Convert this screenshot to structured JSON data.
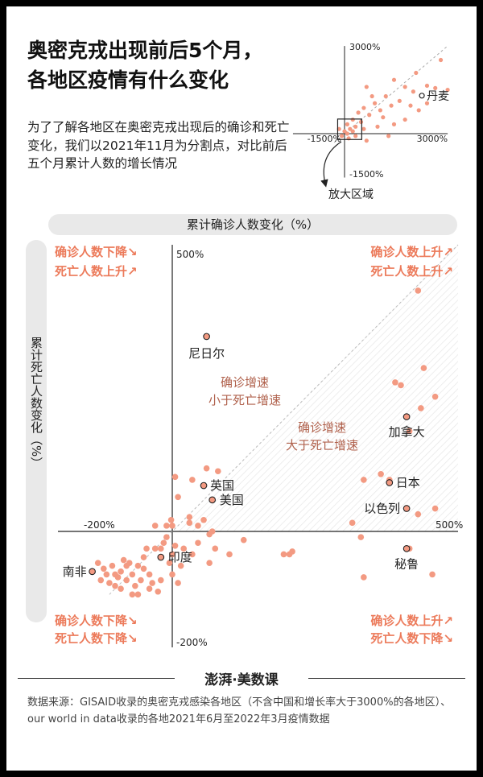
{
  "title_lines": [
    "奥密克戎出现前后5个月，",
    "各地区疫情有什么变化"
  ],
  "intro": "为了了解各地区在奥密克戎出现后的确诊和死亡变化，我们以2021年11月为分割点，对比前后五个月累计人数的增长情况",
  "colors": {
    "dot": "#f39a82",
    "accent": "#ec7a5a",
    "label_brown": "#b0614c",
    "axis_bar": "#e9e9e9"
  },
  "inset": {
    "y_top_label": "3000%",
    "x_left_label": "-1500%",
    "x_right_label": "3000%",
    "y_bottom_label": "-1500%",
    "callout": "丹麦",
    "zoom_label": "放大区域",
    "points": [
      {
        "x": 3000,
        "y": 1500
      },
      {
        "x": 2640,
        "y": 1560
      },
      {
        "x": 2800,
        "y": 2520
      },
      {
        "x": 2400,
        "y": 1640
      },
      {
        "x": 2000,
        "y": 1440
      },
      {
        "x": 1760,
        "y": 1600
      },
      {
        "x": 1600,
        "y": 1120
      },
      {
        "x": 1360,
        "y": 960
      },
      {
        "x": 1200,
        "y": 1280
      },
      {
        "x": 1040,
        "y": 800
      },
      {
        "x": 880,
        "y": 1040
      },
      {
        "x": 720,
        "y": 640
      },
      {
        "x": 560,
        "y": 880
      },
      {
        "x": 480,
        "y": 400
      },
      {
        "x": 400,
        "y": 720
      },
      {
        "x": 320,
        "y": 240
      },
      {
        "x": 240,
        "y": 480
      },
      {
        "x": 160,
        "y": 160
      },
      {
        "x": 80,
        "y": 320
      },
      {
        "x": 0,
        "y": 80
      },
      {
        "x": -80,
        "y": -80
      },
      {
        "x": 120,
        "y": -160
      },
      {
        "x": 640,
        "y": -240
      },
      {
        "x": 1280,
        "y": -80
      },
      {
        "x": 1760,
        "y": 480
      },
      {
        "x": 2160,
        "y": 800
      },
      {
        "x": 960,
        "y": 240
      },
      {
        "x": 1120,
        "y": 560
      },
      {
        "x": 1440,
        "y": 320
      },
      {
        "x": 560,
        "y": 160
      },
      {
        "x": 320,
        "y": -80
      },
      {
        "x": 240,
        "y": 80
      },
      {
        "x": 80,
        "y": 0
      },
      {
        "x": -160,
        "y": 160
      },
      {
        "x": 2400,
        "y": 1040
      },
      {
        "x": 1920,
        "y": 960
      },
      {
        "x": 800,
        "y": 1280
      },
      {
        "x": 640,
        "y": 1600
      },
      {
        "x": 1440,
        "y": 1840
      },
      {
        "x": 2080,
        "y": 2080
      }
    ]
  },
  "chart_data": {
    "type": "scatter",
    "xlabel": "累计确诊人数变化（%）",
    "ylabel": "累计死亡人数变化（%）",
    "xlim": [
      -200,
      500
    ],
    "ylim": [
      -200,
      500
    ],
    "x_ticks": [
      "-200%",
      "500%"
    ],
    "y_ticks": [
      "500%",
      "-200%"
    ],
    "reference_line": "y = x",
    "grid": false,
    "quadrant_labels": {
      "top_left": [
        "确诊人数下降",
        "死亡人数上升"
      ],
      "top_right": [
        "确诊人数上升",
        "死亡人数上升"
      ],
      "bottom_left": [
        "确诊人数下降",
        "死亡人数下降"
      ],
      "bottom_right": [
        "确诊人数上升",
        "死亡人数下降"
      ]
    },
    "region_labels": {
      "upper": [
        "确诊增速",
        "小于死亡增速"
      ],
      "lower": [
        "确诊增速",
        "大于死亡增速"
      ]
    },
    "labeled_points": [
      {
        "name": "尼日尔",
        "x": 60,
        "y": 340
      },
      {
        "name": "加拿大",
        "x": 410,
        "y": 200
      },
      {
        "name": "日本",
        "x": 380,
        "y": 85
      },
      {
        "name": "英国",
        "x": 55,
        "y": 80
      },
      {
        "name": "美国",
        "x": 70,
        "y": 55
      },
      {
        "name": "以色列",
        "x": 410,
        "y": 40
      },
      {
        "name": "秘鲁",
        "x": 410,
        "y": -30
      },
      {
        "name": "印度",
        "x": -20,
        "y": -45
      },
      {
        "name": "南非",
        "x": -140,
        "y": -70
      }
    ],
    "points": [
      {
        "x": 430,
        "y": 420
      },
      {
        "x": 440,
        "y": 285
      },
      {
        "x": 390,
        "y": 260
      },
      {
        "x": 400,
        "y": 255
      },
      {
        "x": 435,
        "y": 215
      },
      {
        "x": 415,
        "y": 175
      },
      {
        "x": 460,
        "y": 235
      },
      {
        "x": 380,
        "y": 90
      },
      {
        "x": 335,
        "y": 90
      },
      {
        "x": 365,
        "y": 100
      },
      {
        "x": 430,
        "y": 30
      },
      {
        "x": 460,
        "y": 40
      },
      {
        "x": 315,
        "y": 15
      },
      {
        "x": 330,
        "y": -10
      },
      {
        "x": 415,
        "y": -30
      },
      {
        "x": 455,
        "y": -75
      },
      {
        "x": 335,
        "y": -80
      },
      {
        "x": 210,
        "y": -35
      },
      {
        "x": 205,
        "y": -40
      },
      {
        "x": 195,
        "y": -40
      },
      {
        "x": 125,
        "y": -15
      },
      {
        "x": 65,
        "y": -5
      },
      {
        "x": 30,
        "y": 15
      },
      {
        "x": 60,
        "y": 110
      },
      {
        "x": 80,
        "y": 105
      },
      {
        "x": 35,
        "y": 90
      },
      {
        "x": 5,
        "y": 95
      },
      {
        "x": 10,
        "y": 60
      },
      {
        "x": 30,
        "y": 25
      },
      {
        "x": 0,
        "y": 10
      },
      {
        "x": -2,
        "y": 20
      },
      {
        "x": -10,
        "y": 10
      },
      {
        "x": -30,
        "y": 10
      },
      {
        "x": 45,
        "y": 10
      },
      {
        "x": 55,
        "y": 20
      },
      {
        "x": 70,
        "y": 0
      },
      {
        "x": 75,
        "y": -30
      },
      {
        "x": 65,
        "y": -55
      },
      {
        "x": 100,
        "y": -40
      },
      {
        "x": 15,
        "y": -60
      },
      {
        "x": 45,
        "y": -20
      },
      {
        "x": 35,
        "y": -40
      },
      {
        "x": 0,
        "y": -40
      },
      {
        "x": 5,
        "y": -25
      },
      {
        "x": 20,
        "y": -30
      },
      {
        "x": -20,
        "y": -30
      },
      {
        "x": -15,
        "y": -20
      },
      {
        "x": -10,
        "y": -10
      },
      {
        "x": -30,
        "y": -30
      },
      {
        "x": -45,
        "y": -30
      },
      {
        "x": -50,
        "y": -45
      },
      {
        "x": -60,
        "y": -60
      },
      {
        "x": -70,
        "y": -75
      },
      {
        "x": -75,
        "y": -55
      },
      {
        "x": -80,
        "y": -85
      },
      {
        "x": -90,
        "y": -70
      },
      {
        "x": -95,
        "y": -80
      },
      {
        "x": -100,
        "y": -75
      },
      {
        "x": -105,
        "y": -60
      },
      {
        "x": -110,
        "y": -90
      },
      {
        "x": -115,
        "y": -75
      },
      {
        "x": -120,
        "y": -65
      },
      {
        "x": -125,
        "y": -85
      },
      {
        "x": -130,
        "y": -55
      },
      {
        "x": -50,
        "y": -65
      },
      {
        "x": -40,
        "y": -75
      },
      {
        "x": -35,
        "y": -90
      },
      {
        "x": -55,
        "y": -85
      },
      {
        "x": -65,
        "y": -95
      },
      {
        "x": -80,
        "y": -60
      },
      {
        "x": -85,
        "y": -50
      },
      {
        "x": -5,
        "y": -55
      },
      {
        "x": 10,
        "y": -90
      },
      {
        "x": 0,
        "y": -75
      },
      {
        "x": -20,
        "y": -85
      },
      {
        "x": -40,
        "y": -100
      },
      {
        "x": -25,
        "y": -105
      },
      {
        "x": -70,
        "y": -110
      },
      {
        "x": -90,
        "y": -100
      },
      {
        "x": -60,
        "y": -110
      },
      {
        "x": -100,
        "y": -95
      }
    ]
  },
  "footer": {
    "brand": "澎湃·美数课",
    "source": "数据来源：GISAID收录的奥密克戎感染各地区（不含中国和增长率大于3000%的各地区）、our world in data收录的各地2021年6月至2022年3月疫情数据"
  }
}
